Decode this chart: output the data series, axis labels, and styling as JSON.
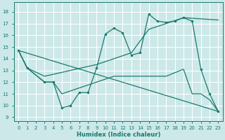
{
  "background_color": "#cce8e8",
  "grid_color": "#ffffff",
  "line_color": "#1a7a6e",
  "xlabel": "Humidex (Indice chaleur)",
  "xlim": [
    -0.5,
    23.5
  ],
  "ylim": [
    8.7,
    18.8
  ],
  "yticks": [
    9,
    10,
    11,
    12,
    13,
    14,
    15,
    16,
    17,
    18
  ],
  "xticks": [
    0,
    1,
    2,
    3,
    4,
    5,
    6,
    7,
    8,
    9,
    10,
    11,
    12,
    13,
    14,
    15,
    16,
    17,
    18,
    19,
    20,
    21,
    22,
    23
  ],
  "curve1_x": [
    0,
    1,
    3,
    4,
    5,
    6,
    7,
    8,
    9,
    10,
    11,
    12,
    13,
    14,
    15,
    16,
    17,
    18,
    19,
    20,
    21,
    22,
    23
  ],
  "curve1_y": [
    14.7,
    13.2,
    12.0,
    12.0,
    9.8,
    10.0,
    11.1,
    11.1,
    13.2,
    16.1,
    16.6,
    16.2,
    14.3,
    14.5,
    17.8,
    17.2,
    17.1,
    17.2,
    17.5,
    17.2,
    13.1,
    11.0,
    9.5
  ],
  "curve2_x": [
    0,
    1,
    3,
    9,
    13,
    15,
    19,
    23
  ],
  "curve2_y": [
    14.7,
    13.2,
    12.5,
    13.5,
    14.5,
    16.5,
    17.5,
    17.3
  ],
  "curve3_x": [
    0,
    23
  ],
  "curve3_y": [
    14.7,
    9.5
  ],
  "curve4_x": [
    0,
    1,
    3,
    4,
    5,
    9,
    11,
    13,
    17,
    19,
    20,
    21,
    22,
    23
  ],
  "curve4_y": [
    14.7,
    13.2,
    12.0,
    12.0,
    11.0,
    12.0,
    12.5,
    12.5,
    12.5,
    13.1,
    11.0,
    11.0,
    10.5,
    9.5
  ]
}
